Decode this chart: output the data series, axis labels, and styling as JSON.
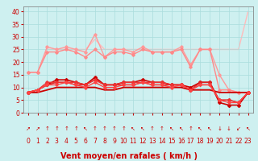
{
  "x": [
    0,
    1,
    2,
    3,
    4,
    5,
    6,
    7,
    8,
    9,
    10,
    11,
    12,
    13,
    14,
    15,
    16,
    17,
    18,
    19,
    20,
    21,
    22,
    23
  ],
  "lines": [
    {
      "y": [
        16,
        16,
        26,
        25,
        26,
        25,
        24,
        31,
        22,
        25,
        25,
        24,
        26,
        24,
        24,
        24,
        26,
        19,
        25,
        25,
        15,
        9,
        8,
        8
      ],
      "color": "#ff9999",
      "lw": 1.0,
      "marker": "D",
      "ms": 1.8,
      "zorder": 2
    },
    {
      "y": [
        16,
        16,
        25,
        25,
        25,
        25,
        25,
        29,
        25,
        25,
        25,
        25,
        25,
        25,
        25,
        25,
        25,
        25,
        25,
        25,
        25,
        25,
        25,
        40
      ],
      "color": "#ffbbbb",
      "lw": 1.0,
      "marker": null,
      "ms": 0,
      "zorder": 1
    },
    {
      "y": [
        16,
        16,
        24,
        24,
        25,
        24,
        22,
        25,
        22,
        24,
        24,
        23,
        25,
        24,
        24,
        24,
        25,
        18,
        25,
        25,
        9,
        9,
        8,
        8
      ],
      "color": "#ff8888",
      "lw": 1.0,
      "marker": "D",
      "ms": 1.8,
      "zorder": 2
    },
    {
      "y": [
        8,
        9,
        11,
        13,
        13,
        12,
        11,
        14,
        11,
        11,
        12,
        12,
        13,
        12,
        12,
        11,
        11,
        10,
        12,
        12,
        4,
        3,
        3,
        8
      ],
      "color": "#cc0000",
      "lw": 1.2,
      "marker": "D",
      "ms": 2.0,
      "zorder": 3
    },
    {
      "y": [
        8,
        9,
        11,
        12,
        12,
        11,
        11,
        13,
        11,
        11,
        11,
        11,
        12,
        11,
        11,
        11,
        11,
        9,
        12,
        12,
        5,
        5,
        4,
        8
      ],
      "color": "#dd2222",
      "lw": 1.0,
      "marker": "D",
      "ms": 1.8,
      "zorder": 3
    },
    {
      "y": [
        8,
        9,
        12,
        12,
        12,
        12,
        11,
        13,
        11,
        11,
        12,
        12,
        12,
        12,
        12,
        11,
        11,
        9,
        11,
        11,
        5,
        5,
        4,
        8
      ],
      "color": "#ee3333",
      "lw": 1.0,
      "marker": "D",
      "ms": 1.8,
      "zorder": 3
    },
    {
      "y": [
        8,
        9,
        11,
        11,
        12,
        11,
        10,
        12,
        10,
        10,
        11,
        11,
        12,
        11,
        11,
        10,
        11,
        9,
        11,
        11,
        5,
        4,
        4,
        8
      ],
      "color": "#ff4444",
      "lw": 1.0,
      "marker": "D",
      "ms": 1.8,
      "zorder": 3
    },
    {
      "y": [
        8,
        8,
        9,
        10,
        10,
        10,
        10,
        10,
        9,
        9,
        10,
        10,
        10,
        10,
        10,
        10,
        10,
        9,
        9,
        9,
        8,
        8,
        8,
        8
      ],
      "color": "#cc0000",
      "lw": 1.3,
      "marker": null,
      "ms": 0,
      "zorder": 2
    }
  ],
  "wind_arrows": [
    "↗",
    "↗",
    "↑",
    "↑",
    "↑",
    "↑",
    "↖",
    "↑",
    "↑",
    "↑",
    "↑",
    "↖",
    "↖",
    "↑",
    "↑",
    "↖",
    "↖",
    "↑",
    "↖",
    "↖",
    "↓",
    "↓",
    "↙",
    "↖"
  ],
  "bg_color": "#cef0f0",
  "grid_color": "#aadddd",
  "xlabel": "Vent moyen/en rafales ( km/h )",
  "xlabel_color": "#cc0000",
  "xlabel_fontsize": 7.0,
  "xlim": [
    -0.5,
    23.5
  ],
  "ylim": [
    0,
    42
  ],
  "yticks": [
    0,
    5,
    10,
    15,
    20,
    25,
    30,
    35,
    40
  ],
  "xticks": [
    0,
    1,
    2,
    3,
    4,
    5,
    6,
    7,
    8,
    9,
    10,
    11,
    12,
    13,
    14,
    15,
    16,
    17,
    18,
    19,
    20,
    21,
    22,
    23
  ],
  "tick_color": "#cc0000",
  "tick_fontsize": 5.5,
  "spine_color": "#888888",
  "arrow_color": "#cc0000",
  "arrow_fontsize": 5.0
}
